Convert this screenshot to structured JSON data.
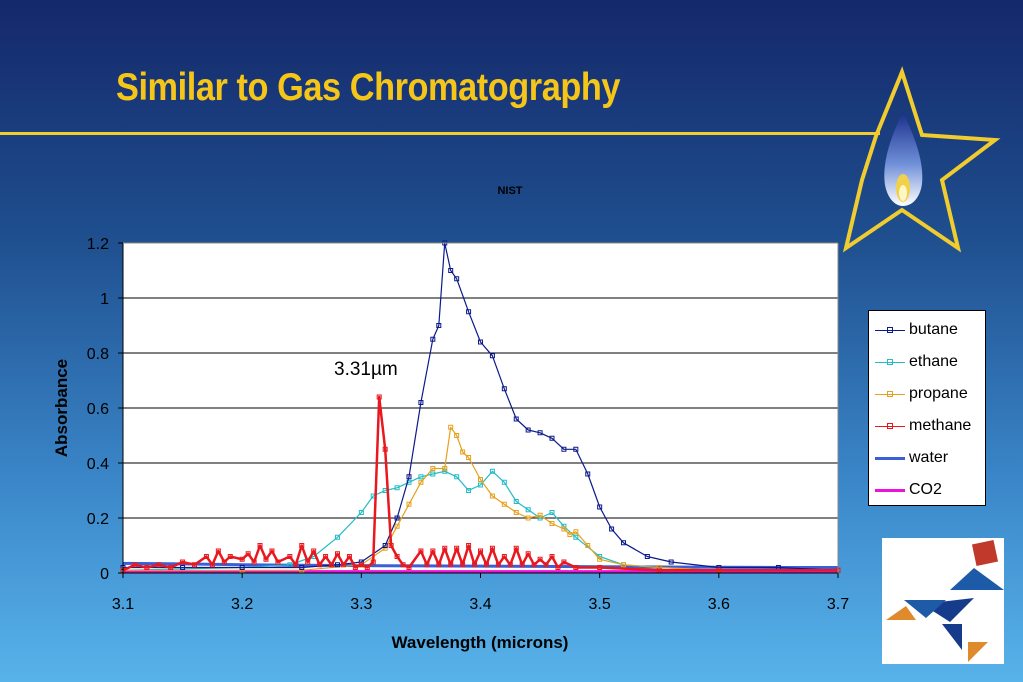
{
  "slide": {
    "title": "Similar to Gas Chromatography",
    "accent_color": "#f5c518"
  },
  "icons": {
    "star": "star-with-flame-icon",
    "logo": "tangram-bird-logo"
  },
  "chart_data": {
    "type": "line",
    "title": "NIST",
    "xlabel": "Wavelength (microns)",
    "ylabel": "Absorbance",
    "xlim": [
      3.1,
      3.7
    ],
    "ylim": [
      0,
      1.2
    ],
    "x_ticks": [
      "3.1",
      "3.2",
      "3.3",
      "3.4",
      "3.5",
      "3.6",
      "3.7"
    ],
    "y_ticks": [
      "0",
      "0.2",
      "0.4",
      "0.6",
      "0.8",
      "1",
      "1.2"
    ],
    "grid": "horizontal",
    "legend_position": "right",
    "annotation": "3.31µm",
    "series": [
      {
        "name": "butane",
        "color": "#0c1a8a",
        "markers": true,
        "points": [
          [
            3.1,
            0.02
          ],
          [
            3.15,
            0.02
          ],
          [
            3.2,
            0.02
          ],
          [
            3.25,
            0.02
          ],
          [
            3.28,
            0.03
          ],
          [
            3.3,
            0.04
          ],
          [
            3.32,
            0.1
          ],
          [
            3.33,
            0.2
          ],
          [
            3.34,
            0.35
          ],
          [
            3.35,
            0.62
          ],
          [
            3.36,
            0.85
          ],
          [
            3.365,
            0.9
          ],
          [
            3.37,
            1.2
          ],
          [
            3.375,
            1.1
          ],
          [
            3.38,
            1.07
          ],
          [
            3.39,
            0.95
          ],
          [
            3.4,
            0.84
          ],
          [
            3.41,
            0.79
          ],
          [
            3.42,
            0.67
          ],
          [
            3.43,
            0.56
          ],
          [
            3.44,
            0.52
          ],
          [
            3.45,
            0.51
          ],
          [
            3.46,
            0.49
          ],
          [
            3.47,
            0.45
          ],
          [
            3.48,
            0.45
          ],
          [
            3.49,
            0.36
          ],
          [
            3.5,
            0.24
          ],
          [
            3.51,
            0.16
          ],
          [
            3.52,
            0.11
          ],
          [
            3.54,
            0.06
          ],
          [
            3.56,
            0.04
          ],
          [
            3.6,
            0.02
          ],
          [
            3.65,
            0.02
          ],
          [
            3.7,
            0.01
          ]
        ]
      },
      {
        "name": "ethane",
        "color": "#22bcc7",
        "markers": true,
        "points": [
          [
            3.1,
            0.01
          ],
          [
            3.2,
            0.02
          ],
          [
            3.24,
            0.03
          ],
          [
            3.26,
            0.06
          ],
          [
            3.28,
            0.13
          ],
          [
            3.3,
            0.22
          ],
          [
            3.31,
            0.28
          ],
          [
            3.32,
            0.3
          ],
          [
            3.33,
            0.31
          ],
          [
            3.34,
            0.33
          ],
          [
            3.35,
            0.35
          ],
          [
            3.36,
            0.36
          ],
          [
            3.37,
            0.37
          ],
          [
            3.38,
            0.35
          ],
          [
            3.39,
            0.3
          ],
          [
            3.4,
            0.32
          ],
          [
            3.41,
            0.37
          ],
          [
            3.42,
            0.33
          ],
          [
            3.43,
            0.26
          ],
          [
            3.44,
            0.23
          ],
          [
            3.45,
            0.2
          ],
          [
            3.46,
            0.22
          ],
          [
            3.47,
            0.17
          ],
          [
            3.48,
            0.13
          ],
          [
            3.5,
            0.06
          ],
          [
            3.52,
            0.03
          ],
          [
            3.55,
            0.02
          ],
          [
            3.6,
            0.01
          ],
          [
            3.7,
            0.01
          ]
        ]
      },
      {
        "name": "propane",
        "color": "#e6a11c",
        "markers": true,
        "points": [
          [
            3.1,
            0.01
          ],
          [
            3.2,
            0.01
          ],
          [
            3.25,
            0.01
          ],
          [
            3.3,
            0.03
          ],
          [
            3.32,
            0.09
          ],
          [
            3.33,
            0.17
          ],
          [
            3.34,
            0.25
          ],
          [
            3.35,
            0.33
          ],
          [
            3.36,
            0.38
          ],
          [
            3.37,
            0.38
          ],
          [
            3.375,
            0.53
          ],
          [
            3.38,
            0.5
          ],
          [
            3.385,
            0.44
          ],
          [
            3.39,
            0.42
          ],
          [
            3.4,
            0.34
          ],
          [
            3.41,
            0.28
          ],
          [
            3.42,
            0.25
          ],
          [
            3.43,
            0.22
          ],
          [
            3.44,
            0.2
          ],
          [
            3.45,
            0.21
          ],
          [
            3.46,
            0.18
          ],
          [
            3.47,
            0.16
          ],
          [
            3.475,
            0.14
          ],
          [
            3.48,
            0.15
          ],
          [
            3.49,
            0.1
          ],
          [
            3.5,
            0.05
          ],
          [
            3.52,
            0.03
          ],
          [
            3.55,
            0.02
          ],
          [
            3.6,
            0.01
          ],
          [
            3.7,
            0.01
          ]
        ]
      },
      {
        "name": "methane",
        "color": "#e8181e",
        "markers": true,
        "points": [
          [
            3.1,
            0.01
          ],
          [
            3.11,
            0.03
          ],
          [
            3.12,
            0.02
          ],
          [
            3.13,
            0.03
          ],
          [
            3.14,
            0.02
          ],
          [
            3.15,
            0.04
          ],
          [
            3.16,
            0.03
          ],
          [
            3.17,
            0.06
          ],
          [
            3.175,
            0.03
          ],
          [
            3.18,
            0.08
          ],
          [
            3.185,
            0.04
          ],
          [
            3.19,
            0.06
          ],
          [
            3.2,
            0.05
          ],
          [
            3.205,
            0.07
          ],
          [
            3.21,
            0.04
          ],
          [
            3.215,
            0.1
          ],
          [
            3.22,
            0.05
          ],
          [
            3.225,
            0.08
          ],
          [
            3.23,
            0.04
          ],
          [
            3.24,
            0.06
          ],
          [
            3.245,
            0.03
          ],
          [
            3.25,
            0.1
          ],
          [
            3.255,
            0.04
          ],
          [
            3.26,
            0.08
          ],
          [
            3.265,
            0.03
          ],
          [
            3.27,
            0.06
          ],
          [
            3.275,
            0.03
          ],
          [
            3.28,
            0.07
          ],
          [
            3.285,
            0.03
          ],
          [
            3.29,
            0.06
          ],
          [
            3.295,
            0.02
          ],
          [
            3.3,
            0.03
          ],
          [
            3.305,
            0.02
          ],
          [
            3.31,
            0.04
          ],
          [
            3.315,
            0.64
          ],
          [
            3.32,
            0.45
          ],
          [
            3.325,
            0.1
          ],
          [
            3.33,
            0.06
          ],
          [
            3.335,
            0.03
          ],
          [
            3.34,
            0.02
          ],
          [
            3.35,
            0.08
          ],
          [
            3.355,
            0.03
          ],
          [
            3.36,
            0.08
          ],
          [
            3.365,
            0.03
          ],
          [
            3.37,
            0.09
          ],
          [
            3.375,
            0.03
          ],
          [
            3.38,
            0.09
          ],
          [
            3.385,
            0.03
          ],
          [
            3.39,
            0.1
          ],
          [
            3.395,
            0.03
          ],
          [
            3.4,
            0.08
          ],
          [
            3.405,
            0.03
          ],
          [
            3.41,
            0.09
          ],
          [
            3.415,
            0.03
          ],
          [
            3.42,
            0.06
          ],
          [
            3.425,
            0.03
          ],
          [
            3.43,
            0.09
          ],
          [
            3.435,
            0.03
          ],
          [
            3.44,
            0.07
          ],
          [
            3.445,
            0.03
          ],
          [
            3.45,
            0.05
          ],
          [
            3.455,
            0.03
          ],
          [
            3.46,
            0.06
          ],
          [
            3.465,
            0.02
          ],
          [
            3.47,
            0.04
          ],
          [
            3.48,
            0.02
          ],
          [
            3.5,
            0.02
          ],
          [
            3.55,
            0.01
          ],
          [
            3.6,
            0.01
          ],
          [
            3.7,
            0.01
          ]
        ]
      },
      {
        "name": "water",
        "color": "#3a5fd8",
        "markers": false,
        "points": [
          [
            3.1,
            0.035
          ],
          [
            3.15,
            0.033
          ],
          [
            3.2,
            0.03
          ],
          [
            3.25,
            0.028
          ],
          [
            3.3,
            0.027
          ],
          [
            3.35,
            0.026
          ],
          [
            3.4,
            0.025
          ],
          [
            3.45,
            0.024
          ],
          [
            3.5,
            0.023
          ],
          [
            3.55,
            0.022
          ],
          [
            3.6,
            0.021
          ],
          [
            3.65,
            0.02
          ],
          [
            3.7,
            0.02
          ]
        ]
      },
      {
        "name": "CO2",
        "color": "#ee11d8",
        "markers": false,
        "points": [
          [
            3.1,
            0.005
          ],
          [
            3.3,
            0.005
          ],
          [
            3.5,
            0.005
          ],
          [
            3.7,
            0.005
          ]
        ]
      }
    ]
  }
}
